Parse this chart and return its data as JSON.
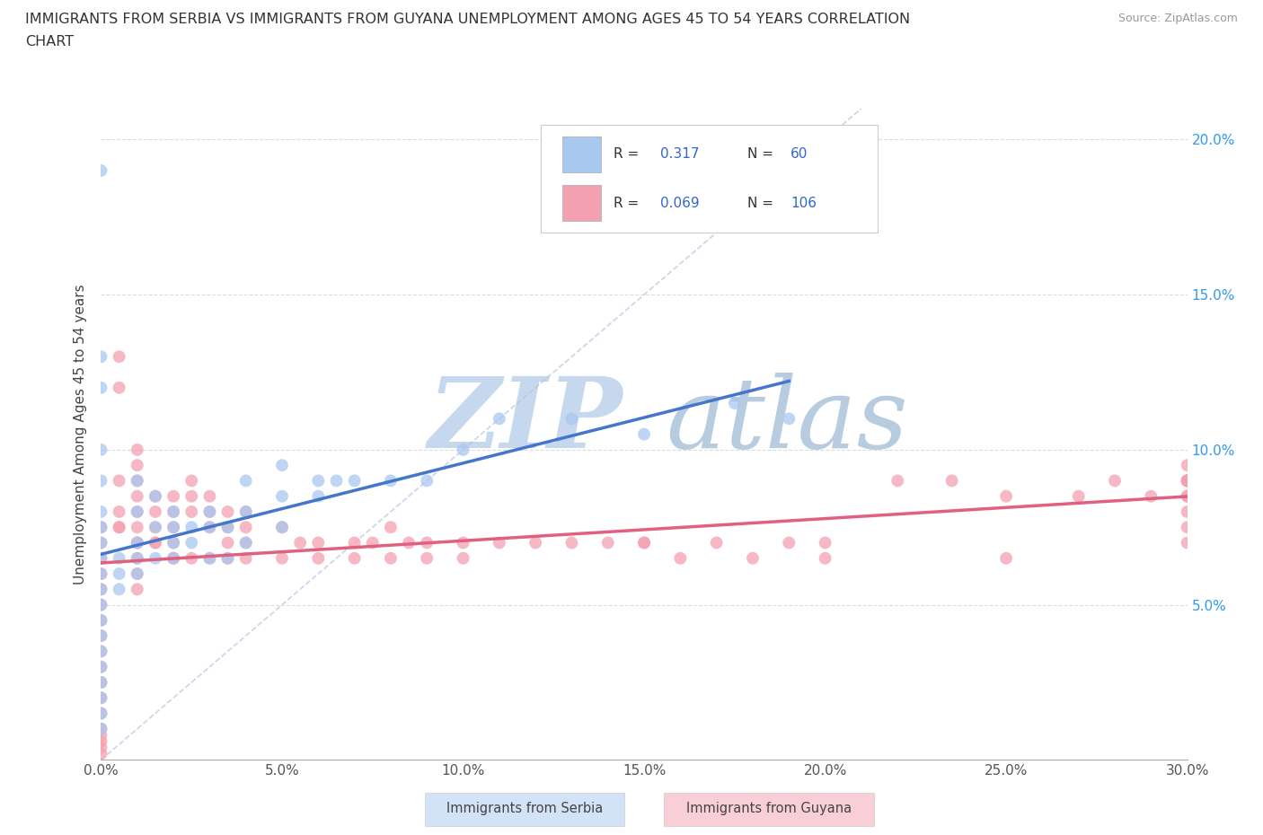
{
  "title_line1": "IMMIGRANTS FROM SERBIA VS IMMIGRANTS FROM GUYANA UNEMPLOYMENT AMONG AGES 45 TO 54 YEARS CORRELATION",
  "title_line2": "CHART",
  "source": "Source: ZipAtlas.com",
  "ylabel": "Unemployment Among Ages 45 to 54 years",
  "xlim": [
    0.0,
    0.3
  ],
  "ylim": [
    0.0,
    0.21
  ],
  "xticks": [
    0.0,
    0.05,
    0.1,
    0.15,
    0.2,
    0.25,
    0.3
  ],
  "xticklabels": [
    "0.0%",
    "5.0%",
    "10.0%",
    "15.0%",
    "20.0%",
    "25.0%",
    "30.0%"
  ],
  "yticks_left": [
    0.05,
    0.1,
    0.15,
    0.2
  ],
  "yticks_right": [
    0.05,
    0.1,
    0.15,
    0.2
  ],
  "yticklabels": [
    "5.0%",
    "10.0%",
    "15.0%",
    "20.0%"
  ],
  "serbia_R": 0.317,
  "serbia_N": 60,
  "guyana_R": 0.069,
  "guyana_N": 106,
  "serbia_color": "#a8c8f0",
  "guyana_color": "#f4a0b0",
  "serbia_line_color": "#4477cc",
  "guyana_line_color": "#e06080",
  "legend_value_color": "#3366cc",
  "watermark_zip_color": "#c5d8ee",
  "watermark_atlas_color": "#b8cce0",
  "diag_line_color": "#b0c4de",
  "serbia_x": [
    0.0,
    0.0,
    0.0,
    0.0,
    0.0,
    0.0,
    0.0,
    0.0,
    0.0,
    0.0,
    0.0,
    0.0,
    0.0,
    0.0,
    0.0,
    0.0,
    0.0,
    0.0,
    0.0,
    0.0,
    0.005,
    0.005,
    0.005,
    0.01,
    0.01,
    0.01,
    0.01,
    0.01,
    0.015,
    0.015,
    0.015,
    0.02,
    0.02,
    0.02,
    0.02,
    0.025,
    0.025,
    0.03,
    0.03,
    0.03,
    0.035,
    0.035,
    0.04,
    0.04,
    0.05,
    0.05,
    0.06,
    0.065,
    0.07,
    0.08,
    0.09,
    0.1,
    0.11,
    0.13,
    0.15,
    0.175,
    0.19,
    0.04,
    0.05,
    0.06
  ],
  "serbia_y": [
    0.19,
    0.13,
    0.12,
    0.1,
    0.09,
    0.08,
    0.075,
    0.07,
    0.065,
    0.06,
    0.055,
    0.05,
    0.045,
    0.04,
    0.035,
    0.03,
    0.025,
    0.02,
    0.015,
    0.01,
    0.065,
    0.06,
    0.055,
    0.09,
    0.08,
    0.07,
    0.065,
    0.06,
    0.085,
    0.075,
    0.065,
    0.08,
    0.075,
    0.07,
    0.065,
    0.075,
    0.07,
    0.08,
    0.075,
    0.065,
    0.075,
    0.065,
    0.08,
    0.07,
    0.085,
    0.075,
    0.085,
    0.09,
    0.09,
    0.09,
    0.09,
    0.1,
    0.11,
    0.11,
    0.105,
    0.115,
    0.11,
    0.09,
    0.095,
    0.09
  ],
  "guyana_x": [
    0.0,
    0.0,
    0.0,
    0.0,
    0.0,
    0.0,
    0.0,
    0.0,
    0.0,
    0.0,
    0.0,
    0.0,
    0.0,
    0.0,
    0.0,
    0.0,
    0.0,
    0.0,
    0.005,
    0.005,
    0.005,
    0.005,
    0.005,
    0.01,
    0.01,
    0.01,
    0.01,
    0.01,
    0.01,
    0.01,
    0.01,
    0.01,
    0.01,
    0.015,
    0.015,
    0.015,
    0.015,
    0.02,
    0.02,
    0.02,
    0.02,
    0.02,
    0.025,
    0.025,
    0.025,
    0.03,
    0.03,
    0.03,
    0.035,
    0.035,
    0.035,
    0.04,
    0.04,
    0.04,
    0.05,
    0.055,
    0.06,
    0.07,
    0.075,
    0.08,
    0.085,
    0.09,
    0.1,
    0.11,
    0.12,
    0.13,
    0.14,
    0.15,
    0.16,
    0.17,
    0.18,
    0.19,
    0.2,
    0.22,
    0.235,
    0.25,
    0.27,
    0.28,
    0.29,
    0.3,
    0.3,
    0.3,
    0.3,
    0.005,
    0.01,
    0.015,
    0.02,
    0.025,
    0.03,
    0.035,
    0.04,
    0.05,
    0.06,
    0.07,
    0.08,
    0.09,
    0.1,
    0.15,
    0.2,
    0.25,
    0.3,
    0.3,
    0.3,
    0.3,
    0.3,
    0.3
  ],
  "guyana_y": [
    0.075,
    0.07,
    0.065,
    0.06,
    0.055,
    0.05,
    0.045,
    0.04,
    0.035,
    0.03,
    0.025,
    0.02,
    0.015,
    0.01,
    0.008,
    0.006,
    0.004,
    0.002,
    0.13,
    0.12,
    0.09,
    0.08,
    0.075,
    0.1,
    0.095,
    0.09,
    0.085,
    0.08,
    0.075,
    0.07,
    0.065,
    0.06,
    0.055,
    0.085,
    0.08,
    0.075,
    0.07,
    0.085,
    0.08,
    0.075,
    0.07,
    0.065,
    0.09,
    0.085,
    0.08,
    0.085,
    0.08,
    0.075,
    0.08,
    0.075,
    0.07,
    0.08,
    0.075,
    0.07,
    0.075,
    0.07,
    0.07,
    0.07,
    0.07,
    0.075,
    0.07,
    0.07,
    0.07,
    0.07,
    0.07,
    0.07,
    0.07,
    0.07,
    0.065,
    0.07,
    0.065,
    0.07,
    0.065,
    0.09,
    0.09,
    0.085,
    0.085,
    0.09,
    0.085,
    0.09,
    0.085,
    0.09,
    0.09,
    0.075,
    0.07,
    0.07,
    0.065,
    0.065,
    0.065,
    0.065,
    0.065,
    0.065,
    0.065,
    0.065,
    0.065,
    0.065,
    0.065,
    0.07,
    0.07,
    0.065,
    0.095,
    0.09,
    0.085,
    0.08,
    0.075,
    0.07
  ]
}
